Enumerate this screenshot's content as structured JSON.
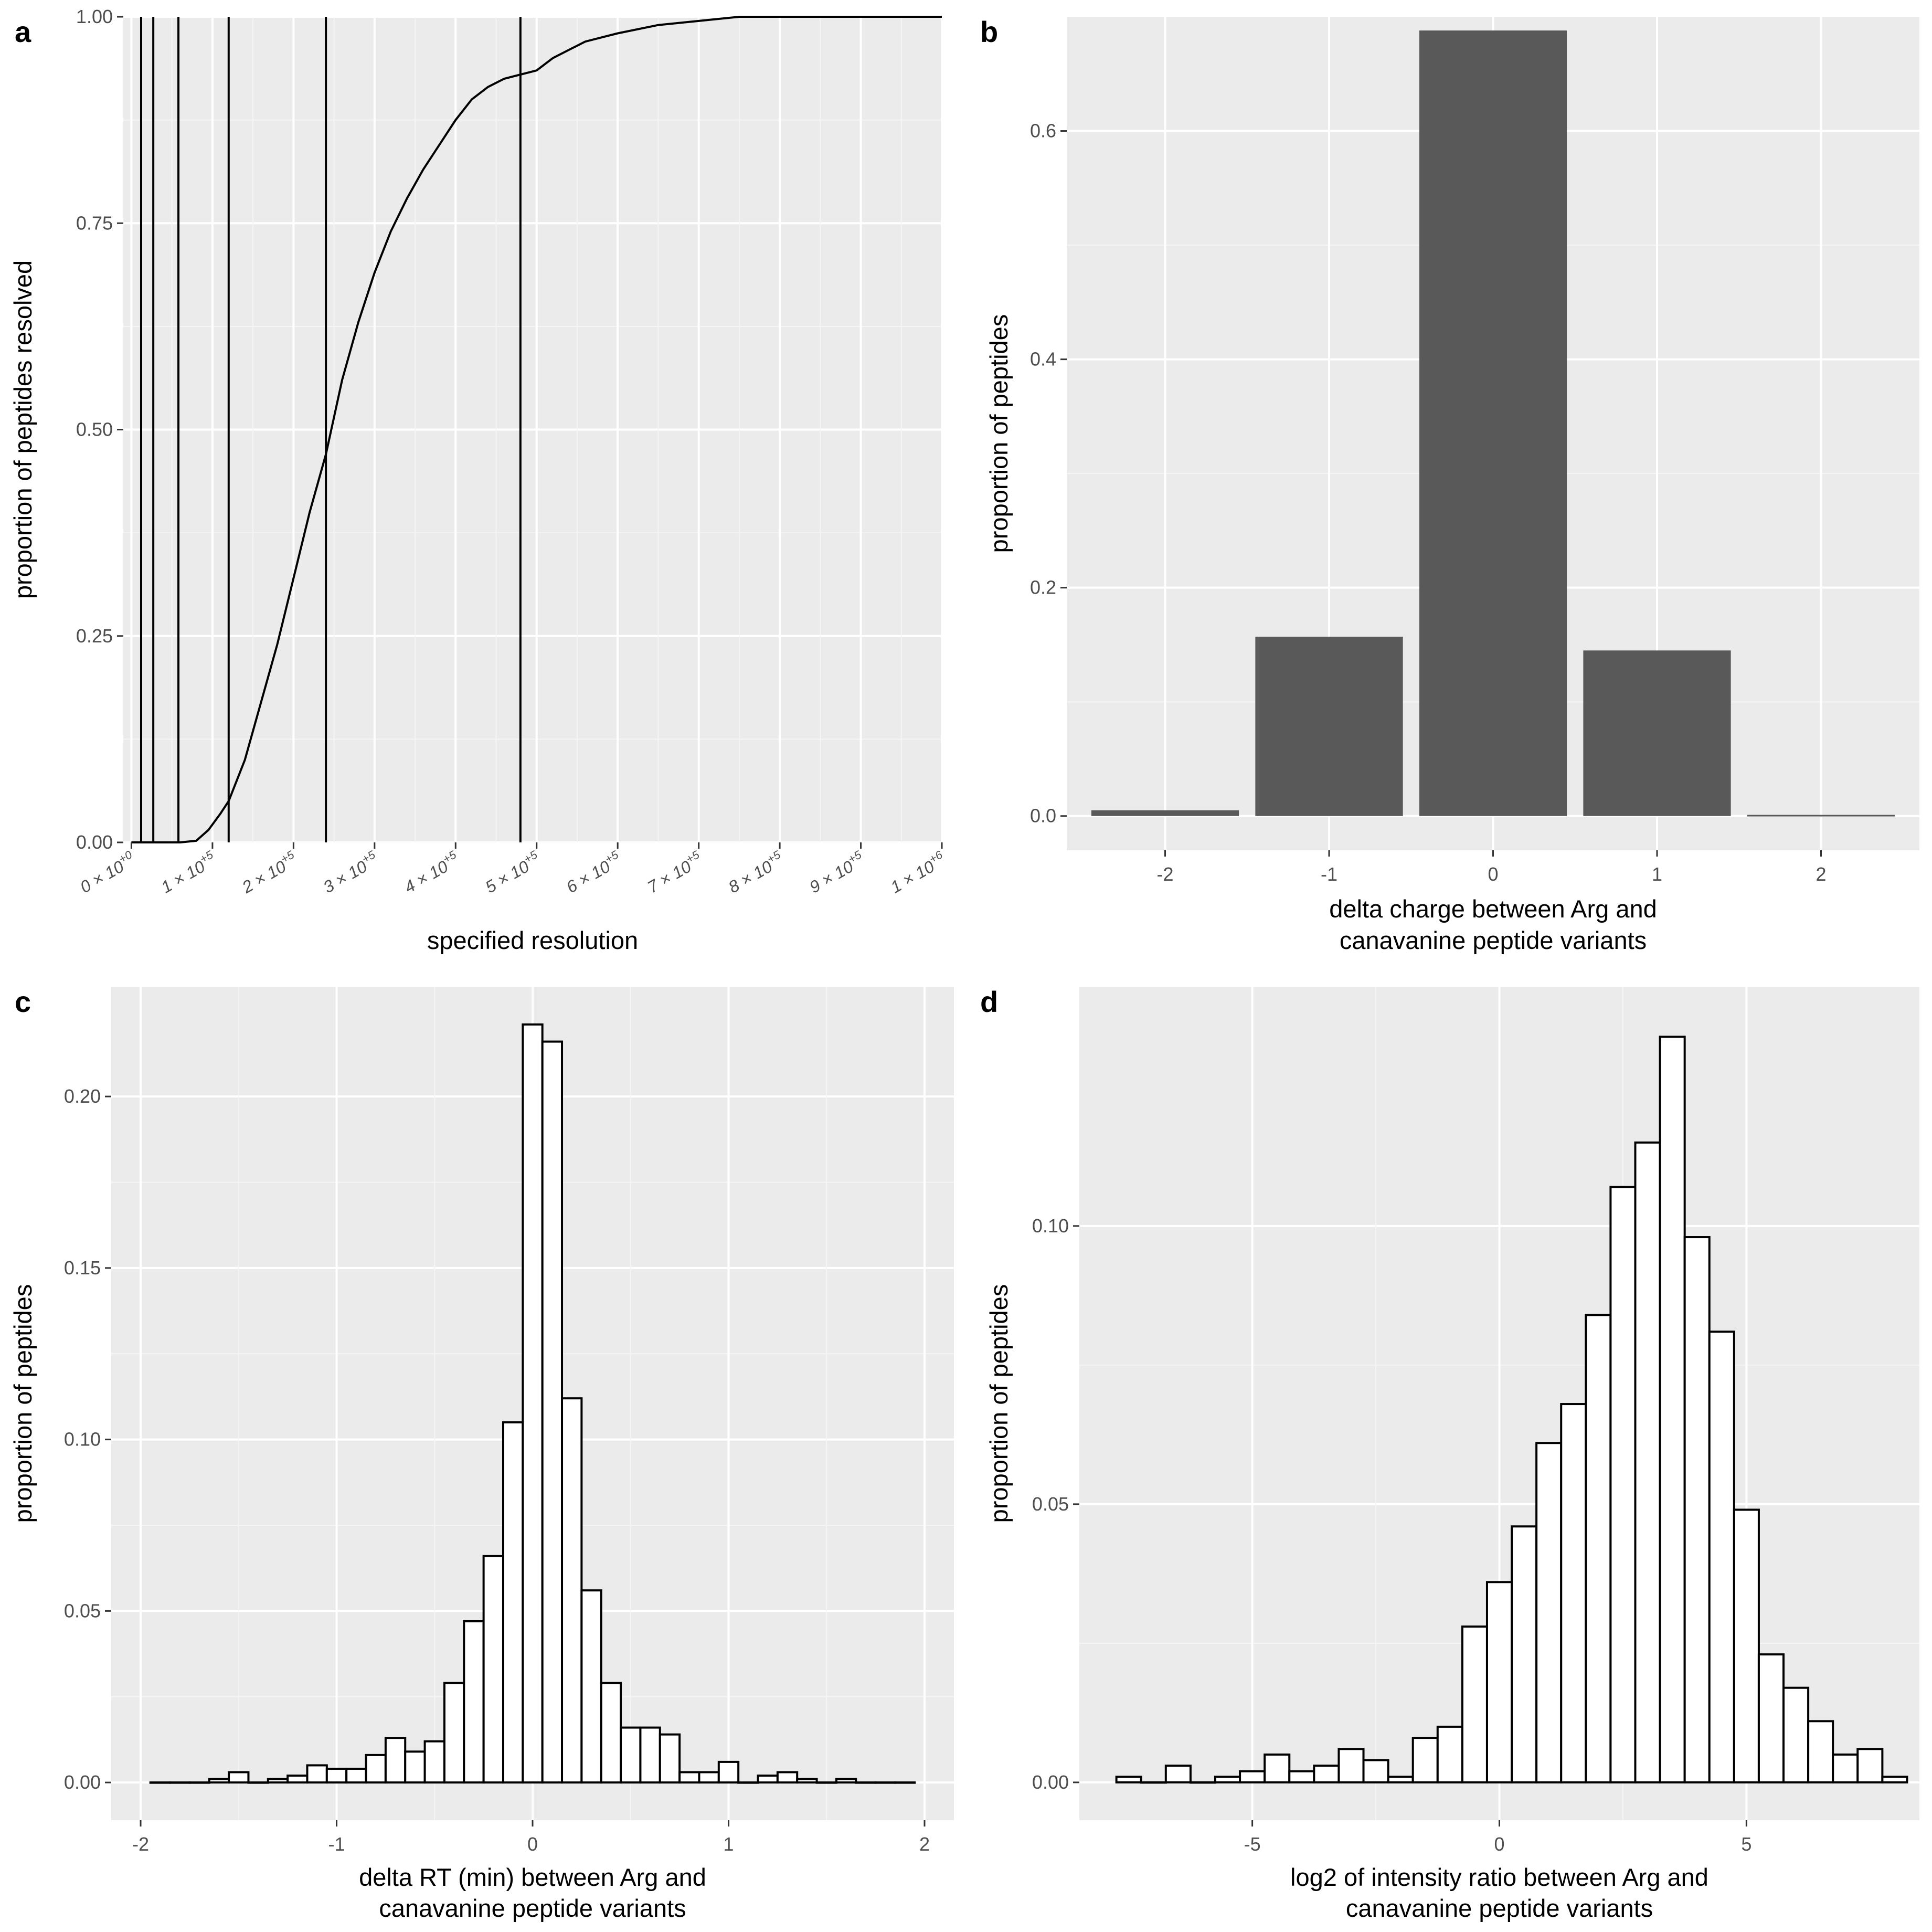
{
  "chart_data": [
    {
      "id": "a",
      "type": "line",
      "panel_label": "a",
      "xlabel": "specified resolution",
      "ylabel": "proportion of peptides resolved",
      "xlim": [
        -10000,
        1000000
      ],
      "ylim": [
        0,
        1
      ],
      "x_ticks": [
        0,
        100000,
        200000,
        300000,
        400000,
        500000,
        600000,
        700000,
        800000,
        900000,
        1000000
      ],
      "x_tick_labels": [
        {
          "coef": "0",
          "exp": "+0"
        },
        {
          "coef": "1",
          "exp": "+5"
        },
        {
          "coef": "2",
          "exp": "+5"
        },
        {
          "coef": "3",
          "exp": "+5"
        },
        {
          "coef": "4",
          "exp": "+5"
        },
        {
          "coef": "5",
          "exp": "+5"
        },
        {
          "coef": "6",
          "exp": "+5"
        },
        {
          "coef": "7",
          "exp": "+5"
        },
        {
          "coef": "8",
          "exp": "+5"
        },
        {
          "coef": "9",
          "exp": "+5"
        },
        {
          "coef": "1",
          "exp": "+6"
        }
      ],
      "y_ticks": [
        0,
        0.25,
        0.5,
        0.75,
        1
      ],
      "y_tick_labels": [
        "0.00",
        "0.25",
        "0.50",
        "0.75",
        "1.00"
      ],
      "vlines": [
        12000,
        27000,
        58000,
        120000,
        240000,
        480000
      ],
      "x": [
        0,
        60000,
        80000,
        95000,
        110000,
        120000,
        140000,
        160000,
        180000,
        200000,
        220000,
        240000,
        260000,
        280000,
        300000,
        320000,
        340000,
        360000,
        380000,
        400000,
        420000,
        440000,
        460000,
        480000,
        500000,
        520000,
        540000,
        560000,
        580000,
        600000,
        650000,
        700000,
        750000,
        800000,
        1000000
      ],
      "y": [
        0,
        0,
        0.002,
        0.015,
        0.035,
        0.05,
        0.1,
        0.17,
        0.24,
        0.32,
        0.4,
        0.47,
        0.56,
        0.63,
        0.69,
        0.74,
        0.78,
        0.815,
        0.845,
        0.875,
        0.9,
        0.915,
        0.925,
        0.93,
        0.935,
        0.95,
        0.96,
        0.97,
        0.975,
        0.98,
        0.99,
        0.995,
        1.0,
        1.0,
        1.0
      ]
    },
    {
      "id": "b",
      "type": "bar",
      "panel_label": "b",
      "xlabel": [
        "delta charge between Arg and",
        "canavanine peptide variants"
      ],
      "ylabel": "proportion of peptides",
      "xlim": [
        -2.6,
        2.6
      ],
      "ylim": [
        -0.03,
        0.7
      ],
      "categories": [
        "-2",
        "-1",
        "0",
        "1",
        "2"
      ],
      "x": [
        -2,
        -1,
        0,
        1,
        2
      ],
      "values": [
        0.005,
        0.157,
        0.688,
        0.145,
        0.001
      ],
      "bar_width": 0.9,
      "y_ticks": [
        0,
        0.2,
        0.4,
        0.6
      ],
      "y_tick_labels": [
        "0.0",
        "0.2",
        "0.4",
        "0.6"
      ],
      "bar_color": "#595959"
    },
    {
      "id": "c",
      "type": "bar",
      "subtype": "histogram",
      "panel_label": "c",
      "xlabel": [
        "delta RT (min) between Arg and",
        "canavanine peptide variants"
      ],
      "ylabel": "proportion of peptides",
      "xlim": [
        -2.15,
        2.15
      ],
      "ylim": [
        -0.011,
        0.232
      ],
      "bin_start": -1.95,
      "bin_width": 0.1,
      "values": [
        0,
        0,
        0,
        0.001,
        0.003,
        0,
        0.001,
        0.002,
        0.005,
        0.004,
        0.004,
        0.008,
        0.013,
        0.009,
        0.012,
        0.029,
        0.047,
        0.066,
        0.105,
        0.221,
        0.216,
        0.112,
        0.056,
        0.029,
        0.016,
        0.016,
        0.014,
        0.003,
        0.003,
        0.006,
        0,
        0.002,
        0.003,
        0.001,
        0,
        0.001,
        0,
        0,
        0
      ],
      "x_ticks": [
        -2,
        -1,
        0,
        1,
        2
      ],
      "x_tick_labels": [
        "-2",
        "-1",
        "0",
        "1",
        "2"
      ],
      "y_ticks": [
        0,
        0.05,
        0.1,
        0.15,
        0.2
      ],
      "y_tick_labels": [
        "0.00",
        "0.05",
        "0.10",
        "0.15",
        "0.20"
      ]
    },
    {
      "id": "d",
      "type": "bar",
      "subtype": "histogram",
      "panel_label": "d",
      "xlabel": [
        "log2 of intensity ratio between Arg and",
        "canavanine peptide variants"
      ],
      "ylabel": "proportion of peptides",
      "xlim": [
        -8.5,
        8.5
      ],
      "ylim": [
        -0.0068,
        0.143
      ],
      "bin_start": -7.75,
      "bin_width": 0.5,
      "values": [
        0.001,
        0,
        0.003,
        0,
        0.001,
        0.002,
        0.005,
        0.002,
        0.003,
        0.006,
        0.004,
        0.001,
        0.008,
        0.01,
        0.028,
        0.036,
        0.046,
        0.061,
        0.068,
        0.084,
        0.107,
        0.115,
        0.134,
        0.098,
        0.081,
        0.049,
        0.023,
        0.017,
        0.011,
        0.005,
        0.006,
        0.001
      ],
      "x_ticks": [
        -5,
        0,
        5
      ],
      "x_tick_labels": [
        "-5",
        "0",
        "5"
      ],
      "y_ticks": [
        0,
        0.05,
        0.1
      ],
      "y_tick_labels": [
        "0.00",
        "0.05",
        "0.10"
      ]
    }
  ]
}
